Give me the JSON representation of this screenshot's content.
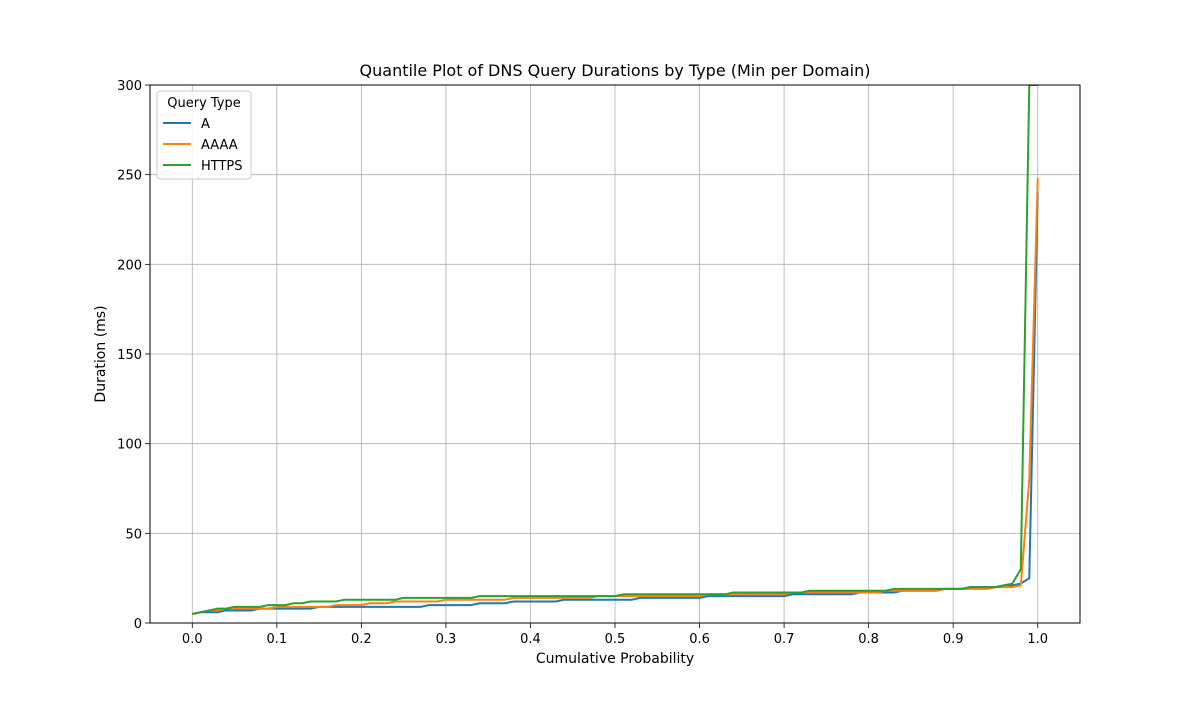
{
  "chart_data": {
    "type": "line",
    "title": "Quantile Plot of DNS Query Durations by Type (Min per Domain)",
    "xlabel": "Cumulative Probability",
    "ylabel": "Duration (ms)",
    "xlim": [
      -0.05,
      1.05
    ],
    "ylim": [
      0,
      300
    ],
    "xticks": [
      0.0,
      0.1,
      0.2,
      0.3,
      0.4,
      0.5,
      0.6,
      0.7,
      0.8,
      0.9,
      1.0
    ],
    "xtick_labels": [
      "0.0",
      "0.1",
      "0.2",
      "0.3",
      "0.4",
      "0.5",
      "0.6",
      "0.7",
      "0.8",
      "0.9",
      "1.0"
    ],
    "yticks": [
      0,
      50,
      100,
      150,
      200,
      250,
      300
    ],
    "ytick_labels": [
      "0",
      "50",
      "100",
      "150",
      "200",
      "250",
      "300"
    ],
    "grid": true,
    "legend": {
      "title": "Query Type",
      "placement": "top-left"
    },
    "series": [
      {
        "name": "A",
        "color": "#1f77b4",
        "x": [
          0.0,
          0.01,
          0.02,
          0.03,
          0.04,
          0.05,
          0.06,
          0.07,
          0.08,
          0.09,
          0.1,
          0.11,
          0.12,
          0.13,
          0.14,
          0.15,
          0.16,
          0.17,
          0.18,
          0.19,
          0.2,
          0.21,
          0.22,
          0.23,
          0.24,
          0.25,
          0.26,
          0.27,
          0.28,
          0.29,
          0.3,
          0.31,
          0.32,
          0.33,
          0.34,
          0.35,
          0.36,
          0.37,
          0.38,
          0.39,
          0.4,
          0.41,
          0.42,
          0.43,
          0.44,
          0.45,
          0.46,
          0.47,
          0.48,
          0.49,
          0.5,
          0.51,
          0.52,
          0.53,
          0.54,
          0.55,
          0.56,
          0.57,
          0.58,
          0.59,
          0.6,
          0.61,
          0.62,
          0.63,
          0.64,
          0.65,
          0.66,
          0.67,
          0.68,
          0.69,
          0.7,
          0.71,
          0.72,
          0.73,
          0.74,
          0.75,
          0.76,
          0.77,
          0.78,
          0.79,
          0.8,
          0.81,
          0.82,
          0.83,
          0.84,
          0.85,
          0.86,
          0.87,
          0.88,
          0.89,
          0.9,
          0.91,
          0.92,
          0.93,
          0.94,
          0.95,
          0.96,
          0.97,
          0.98,
          0.99,
          1.0
        ],
        "y": [
          5,
          6,
          6,
          6,
          7,
          7,
          7,
          7,
          8,
          8,
          8,
          8,
          8,
          8,
          8,
          9,
          9,
          9,
          9,
          9,
          9,
          9,
          9,
          9,
          9,
          9,
          9,
          9,
          10,
          10,
          10,
          10,
          10,
          10,
          11,
          11,
          11,
          11,
          12,
          12,
          12,
          12,
          12,
          12,
          13,
          13,
          13,
          13,
          13,
          13,
          13,
          13,
          13,
          14,
          14,
          14,
          14,
          14,
          14,
          14,
          14,
          15,
          15,
          15,
          15,
          15,
          15,
          15,
          15,
          15,
          15,
          16,
          16,
          16,
          16,
          16,
          16,
          16,
          16,
          17,
          17,
          17,
          17,
          17,
          18,
          18,
          18,
          18,
          18,
          19,
          19,
          19,
          20,
          20,
          20,
          20,
          21,
          21,
          22,
          25,
          240
        ]
      },
      {
        "name": "AAAA",
        "color": "#ff7f0e",
        "x": [
          0.0,
          0.01,
          0.02,
          0.03,
          0.04,
          0.05,
          0.06,
          0.07,
          0.08,
          0.09,
          0.1,
          0.11,
          0.12,
          0.13,
          0.14,
          0.15,
          0.16,
          0.17,
          0.18,
          0.19,
          0.2,
          0.21,
          0.22,
          0.23,
          0.24,
          0.25,
          0.26,
          0.27,
          0.28,
          0.29,
          0.3,
          0.31,
          0.32,
          0.33,
          0.34,
          0.35,
          0.36,
          0.37,
          0.38,
          0.39,
          0.4,
          0.41,
          0.42,
          0.43,
          0.44,
          0.45,
          0.46,
          0.47,
          0.48,
          0.49,
          0.5,
          0.51,
          0.52,
          0.53,
          0.54,
          0.55,
          0.56,
          0.57,
          0.58,
          0.59,
          0.6,
          0.61,
          0.62,
          0.63,
          0.64,
          0.65,
          0.66,
          0.67,
          0.68,
          0.69,
          0.7,
          0.71,
          0.72,
          0.73,
          0.74,
          0.75,
          0.76,
          0.77,
          0.78,
          0.79,
          0.8,
          0.81,
          0.82,
          0.83,
          0.84,
          0.85,
          0.86,
          0.87,
          0.88,
          0.89,
          0.9,
          0.91,
          0.92,
          0.93,
          0.94,
          0.95,
          0.96,
          0.97,
          0.98,
          0.99,
          1.0
        ],
        "y": [
          5,
          6,
          7,
          7,
          8,
          8,
          8,
          8,
          8,
          8,
          9,
          9,
          9,
          9,
          9,
          9,
          9,
          10,
          10,
          10,
          10,
          11,
          11,
          11,
          12,
          12,
          12,
          12,
          12,
          12,
          13,
          13,
          13,
          13,
          13,
          13,
          13,
          13,
          14,
          14,
          14,
          14,
          14,
          14,
          14,
          14,
          14,
          14,
          15,
          15,
          15,
          15,
          15,
          15,
          15,
          15,
          15,
          15,
          15,
          15,
          15,
          16,
          16,
          16,
          16,
          16,
          16,
          16,
          16,
          16,
          16,
          17,
          17,
          17,
          17,
          17,
          17,
          17,
          17,
          17,
          17,
          17,
          18,
          18,
          18,
          18,
          18,
          18,
          18,
          19,
          19,
          19,
          19,
          19,
          19,
          20,
          20,
          20,
          21,
          80,
          248
        ]
      },
      {
        "name": "HTTPS",
        "color": "#2ca02c",
        "x": [
          0.0,
          0.01,
          0.02,
          0.03,
          0.04,
          0.05,
          0.06,
          0.07,
          0.08,
          0.09,
          0.1,
          0.11,
          0.12,
          0.13,
          0.14,
          0.15,
          0.16,
          0.17,
          0.18,
          0.19,
          0.2,
          0.21,
          0.22,
          0.23,
          0.24,
          0.25,
          0.26,
          0.27,
          0.28,
          0.29,
          0.3,
          0.31,
          0.32,
          0.33,
          0.34,
          0.35,
          0.36,
          0.37,
          0.38,
          0.39,
          0.4,
          0.41,
          0.42,
          0.43,
          0.44,
          0.45,
          0.46,
          0.47,
          0.48,
          0.49,
          0.5,
          0.51,
          0.52,
          0.53,
          0.54,
          0.55,
          0.56,
          0.57,
          0.58,
          0.59,
          0.6,
          0.61,
          0.62,
          0.63,
          0.64,
          0.65,
          0.66,
          0.67,
          0.68,
          0.69,
          0.7,
          0.71,
          0.72,
          0.73,
          0.74,
          0.75,
          0.76,
          0.77,
          0.78,
          0.79,
          0.8,
          0.81,
          0.82,
          0.83,
          0.84,
          0.85,
          0.86,
          0.87,
          0.88,
          0.89,
          0.9,
          0.91,
          0.92,
          0.93,
          0.94,
          0.95,
          0.96,
          0.97,
          0.98,
          0.99,
          1.0
        ],
        "y": [
          5,
          6,
          7,
          8,
          8,
          9,
          9,
          9,
          9,
          10,
          10,
          10,
          11,
          11,
          12,
          12,
          12,
          12,
          13,
          13,
          13,
          13,
          13,
          13,
          13,
          14,
          14,
          14,
          14,
          14,
          14,
          14,
          14,
          14,
          15,
          15,
          15,
          15,
          15,
          15,
          15,
          15,
          15,
          15,
          15,
          15,
          15,
          15,
          15,
          15,
          15,
          16,
          16,
          16,
          16,
          16,
          16,
          16,
          16,
          16,
          16,
          16,
          16,
          16,
          17,
          17,
          17,
          17,
          17,
          17,
          17,
          17,
          17,
          18,
          18,
          18,
          18,
          18,
          18,
          18,
          18,
          18,
          18,
          19,
          19,
          19,
          19,
          19,
          19,
          19,
          19,
          19,
          20,
          20,
          20,
          20,
          21,
          22,
          30,
          300,
          300
        ]
      }
    ]
  }
}
